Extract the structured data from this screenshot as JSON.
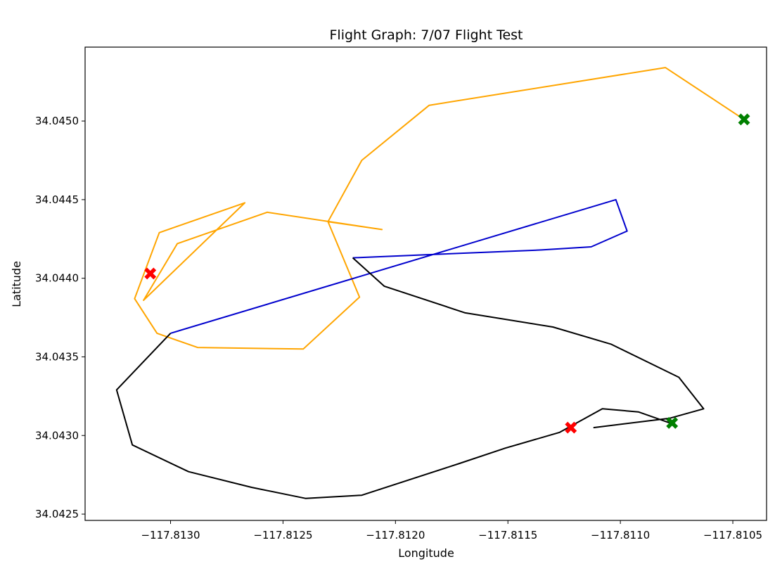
{
  "chart_data": {
    "type": "line",
    "title": "Flight Graph: 7/07 Flight Test",
    "xlabel": "Longitude",
    "ylabel": "Latitude",
    "xlim": [
      -117.81338,
      -117.81035
    ],
    "ylim": [
      34.04246,
      34.04547
    ],
    "x_ticks": [
      -117.813,
      -117.8125,
      -117.812,
      -117.8115,
      -117.811,
      -117.8105
    ],
    "x_tick_labels": [
      "−117.8130",
      "−117.8125",
      "−117.8120",
      "−117.8115",
      "−117.8110",
      "−117.8105"
    ],
    "y_ticks": [
      34.0425,
      34.043,
      34.0435,
      34.044,
      34.0445,
      34.045
    ],
    "y_tick_labels": [
      "34.0425",
      "34.0430",
      "34.0435",
      "34.0440",
      "34.0445",
      "34.0450"
    ],
    "grid": false,
    "series": [
      {
        "color": "#ffa500",
        "points": [
          [
            -117.81045,
            34.04501
          ],
          [
            -117.8108,
            34.04534
          ],
          [
            -117.81185,
            34.0451
          ],
          [
            -117.81215,
            34.04475
          ],
          [
            -117.8123,
            34.04436
          ],
          [
            -117.81206,
            34.04431
          ],
          [
            -117.81257,
            34.04442
          ],
          [
            -117.81297,
            34.04422
          ],
          [
            -117.81312,
            34.04386
          ],
          [
            -117.81267,
            34.04448
          ],
          [
            -117.81305,
            34.04429
          ],
          [
            -117.81316,
            34.04387
          ],
          [
            -117.81306,
            34.04365
          ],
          [
            -117.81288,
            34.04356
          ],
          [
            -117.81241,
            34.04355
          ],
          [
            -117.81216,
            34.04388
          ],
          [
            -117.8123,
            34.04436
          ]
        ]
      },
      {
        "color": "#0000cd",
        "points": [
          [
            -117.813,
            34.04365
          ],
          [
            -117.81102,
            34.0445
          ],
          [
            -117.81097,
            34.0443
          ],
          [
            -117.81113,
            34.0442
          ],
          [
            -117.81135,
            34.04418
          ],
          [
            -117.81219,
            34.04413
          ]
        ]
      },
      {
        "color": "#000000",
        "points": [
          [
            -117.81078,
            34.04308
          ],
          [
            -117.81092,
            34.04315
          ],
          [
            -117.81108,
            34.04317
          ],
          [
            -117.81127,
            34.04302
          ],
          [
            -117.81151,
            34.04292
          ],
          [
            -117.81172,
            34.04282
          ],
          [
            -117.81215,
            34.04262
          ],
          [
            -117.8124,
            34.0426
          ],
          [
            -117.81264,
            34.04267
          ],
          [
            -117.81292,
            34.04277
          ],
          [
            -117.81317,
            34.04294
          ],
          [
            -117.81324,
            34.04329
          ],
          [
            -117.813,
            34.04365
          ]
        ]
      },
      {
        "color": "#000000",
        "points": [
          [
            -117.81219,
            34.04413
          ],
          [
            -117.81205,
            34.04395
          ],
          [
            -117.81169,
            34.04378
          ],
          [
            -117.8113,
            34.04369
          ],
          [
            -117.81104,
            34.04358
          ],
          [
            -117.81074,
            34.04337
          ],
          [
            -117.81063,
            34.04317
          ],
          [
            -117.81078,
            34.04311
          ],
          [
            -117.81112,
            34.04305
          ]
        ]
      }
    ],
    "markers": [
      {
        "x": -117.81309,
        "y": 34.04403,
        "color": "#ff0000",
        "symbol": "X"
      },
      {
        "x": -117.81122,
        "y": 34.04305,
        "color": "#ff0000",
        "symbol": "X"
      },
      {
        "x": -117.81045,
        "y": 34.04501,
        "color": "#008000",
        "symbol": "X"
      },
      {
        "x": -117.81077,
        "y": 34.04308,
        "color": "#008000",
        "symbol": "X"
      }
    ]
  }
}
